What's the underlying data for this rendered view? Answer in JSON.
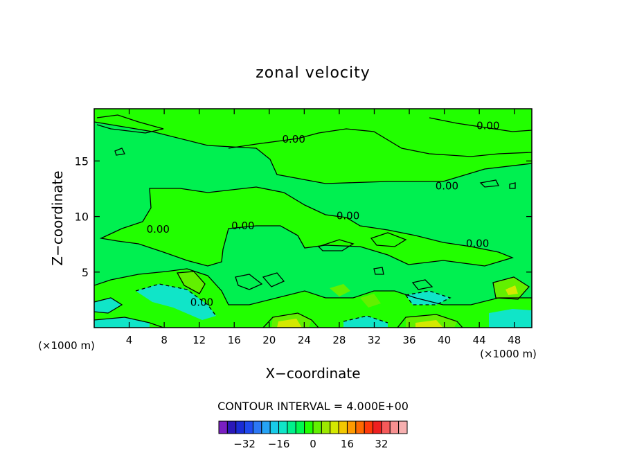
{
  "chart_data": {
    "type": "heatmap",
    "title": "zonal velocity",
    "xlabel": "X−coordinate",
    "ylabel": "Z−coordinate",
    "x_unit_left": "(×1000 m)",
    "x_unit_right": "(×1000 m)",
    "xlim": [
      0,
      50
    ],
    "ylim": [
      0,
      19.7
    ],
    "x_ticks": [
      4,
      8,
      12,
      16,
      20,
      24,
      28,
      32,
      36,
      40,
      44,
      48
    ],
    "y_ticks": [
      5,
      10,
      15
    ],
    "contour_interval_text": "CONTOUR INTERVAL = 4.000E+00",
    "contour_labels": [
      {
        "text": "0.00",
        "x": 45.0,
        "y": 18.1
      },
      {
        "text": "0.00",
        "x": 22.8,
        "y": 16.9
      },
      {
        "text": "0.00",
        "x": 40.3,
        "y": 12.7
      },
      {
        "text": "0.00",
        "x": 29.0,
        "y": 10.0
      },
      {
        "text": "0.00",
        "x": 17.0,
        "y": 9.1
      },
      {
        "text": "0.00",
        "x": 7.3,
        "y": 8.8
      },
      {
        "text": "0.00",
        "x": 43.8,
        "y": 7.5
      },
      {
        "text": "0.00",
        "x": 12.3,
        "y": 2.2
      }
    ],
    "colorbar": {
      "ticks": [
        "−32",
        "−16",
        "0",
        "16",
        "32"
      ],
      "tick_values": [
        -32,
        -16,
        0,
        16,
        32
      ],
      "range": [
        -44,
        44
      ],
      "colors": [
        "#7a1fc2",
        "#2a18b8",
        "#1a2cd6",
        "#1f4aef",
        "#2c78f5",
        "#26a3f5",
        "#18cbe8",
        "#10e5c8",
        "#00f08c",
        "#00f850",
        "#22ff00",
        "#62f000",
        "#9ce800",
        "#d4e800",
        "#f2c800",
        "#ff9a00",
        "#ff6a00",
        "#ff3a0a",
        "#ee2020",
        "#f55a5a",
        "#f79090",
        "#f7b0b0"
      ]
    }
  }
}
